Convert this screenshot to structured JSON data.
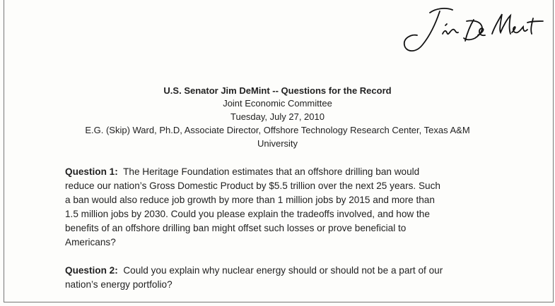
{
  "header": {
    "title": "U.S. Senator Jim DeMint -- Questions for the Record",
    "committee": "Joint Economic Committee",
    "date": "Tuesday, July 27, 2010",
    "witness_lines": [
      "E.G. (Skip) Ward, Ph.D, Associate Director, Offshore Technology Research Center, Texas A&M",
      "University"
    ]
  },
  "questions": [
    {
      "label": "Question 1:",
      "lines": [
        "The Heritage Foundation estimates that an offshore drilling ban would",
        "reduce our nation’s Gross Domestic Product by $5.5 trillion over the next 25 years. Such",
        "a ban would also reduce job growth by more than 1 million jobs by 2015 and more than",
        "1.5 million jobs by 2030. Could you please explain the tradeoffs involved, and how the",
        "benefits of an offshore drilling ban might offset such losses or prove beneficial to",
        "Americans?"
      ]
    },
    {
      "label": "Question 2:",
      "lines": [
        "Could you explain why nuclear energy should or should not be a part of our",
        "nation’s energy portfolio?"
      ]
    }
  ]
}
